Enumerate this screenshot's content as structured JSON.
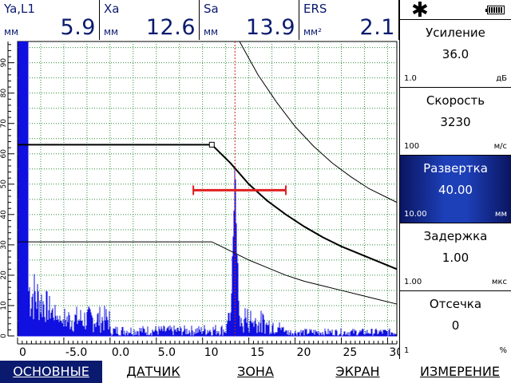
{
  "readouts": [
    {
      "label": "Ya,L1",
      "unit": "мм",
      "value": "5.9"
    },
    {
      "label": "Xa",
      "unit": "мм",
      "value": "12.6"
    },
    {
      "label": "Sa",
      "unit": "мм",
      "value": "13.9"
    },
    {
      "label": "ERS",
      "unit": "мм²",
      "value": "2.1"
    }
  ],
  "status": {
    "star_icon": "asterisk-icon",
    "battery_icon": "battery-icon"
  },
  "params": [
    {
      "name": "Усиление",
      "value": "36.0",
      "step": "1.0",
      "unit": "дБ",
      "active": false
    },
    {
      "name": "Скорость",
      "value": "3230",
      "step": "100",
      "unit": "м/с",
      "active": false
    },
    {
      "name": "Развертка",
      "value": "40.00",
      "step": "10.00",
      "unit": "мм",
      "active": true
    },
    {
      "name": "Задержка",
      "value": "1.00",
      "step": "1.00",
      "unit": "мкс",
      "active": false
    },
    {
      "name": "Отсечка",
      "value": "0",
      "step": "1",
      "unit": "%",
      "active": false
    }
  ],
  "menu": [
    {
      "label": "ОСНОВНЫЕ",
      "active": true
    },
    {
      "label": "ДАТЧИК",
      "active": false
    },
    {
      "label": "ЗОНА",
      "active": false
    },
    {
      "label": "ЭКРАН",
      "active": false
    },
    {
      "label": "ИЗМЕРЕНИЕ",
      "active": false
    }
  ],
  "chart_data": {
    "type": "line",
    "x_ticks": [
      "0",
      "-5.0",
      "0.0",
      "5.0",
      "10",
      "15",
      "20",
      "25",
      "30"
    ],
    "y_ticks": [
      "0",
      "10",
      "20",
      "30",
      "40",
      "50",
      "60",
      "70",
      "80",
      "90"
    ],
    "xlim": [
      -10,
      31
    ],
    "ylim": [
      0,
      97
    ],
    "grid": true,
    "gate": {
      "x_start": 9,
      "x_end": 19,
      "level": 48
    },
    "cursor_x": 13.5,
    "dac_curve": {
      "x": [
        -10,
        11,
        13,
        15,
        17,
        19,
        21,
        23,
        25,
        27,
        29,
        31
      ],
      "y": [
        63,
        63,
        57,
        50,
        44.5,
        40,
        36,
        32.5,
        29.5,
        27,
        24.5,
        22
      ]
    },
    "dac_upper": {
      "x": [
        14,
        16,
        18,
        20,
        22,
        24,
        26,
        28,
        31
      ],
      "y": [
        97,
        86,
        77,
        69,
        62.5,
        57,
        52.5,
        48.5,
        44
      ]
    },
    "dac_lower": {
      "x": [
        -10,
        11,
        13,
        15,
        17,
        19,
        21,
        23,
        25,
        27,
        29,
        31
      ],
      "y": [
        31,
        31,
        28,
        25,
        22.5,
        20,
        18,
        16.5,
        15,
        13.5,
        12,
        10.5
      ]
    },
    "peaks": [
      {
        "x": -9.2,
        "y": 97
      },
      {
        "x": 13.5,
        "y": 57
      }
    ]
  }
}
